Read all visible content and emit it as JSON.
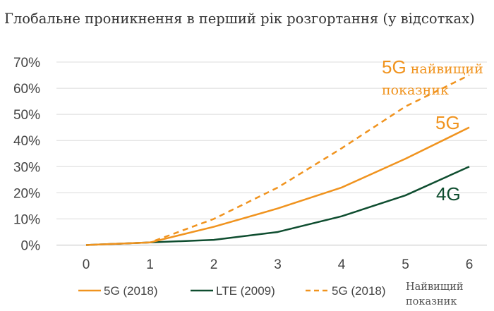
{
  "chart_data": {
    "type": "line",
    "title": "Глобальне проникнення в перший рік розгортання (у відсотках)",
    "x": [
      0,
      1,
      2,
      3,
      4,
      5,
      6
    ],
    "x_tick_labels": [
      "0",
      "1",
      "2",
      "3",
      "4",
      "5",
      "6"
    ],
    "ylim": [
      0,
      70
    ],
    "y_tick_labels": [
      "0%",
      "10%",
      "20%",
      "30%",
      "40%",
      "50%",
      "60%",
      "70%"
    ],
    "y_ticks": [
      0,
      10,
      20,
      30,
      40,
      50,
      60,
      70
    ],
    "grid": true,
    "series": [
      {
        "name": "5G (2018)",
        "color": "#F0931E",
        "style": "solid",
        "values": [
          0,
          1,
          7,
          14,
          22,
          33,
          45
        ]
      },
      {
        "name": "LTE (2009)",
        "color": "#0E4D2F",
        "style": "solid",
        "values": [
          0,
          1,
          2,
          5,
          11,
          19,
          30
        ]
      },
      {
        "name": "5G (2018)",
        "name_suffix": [
          "Найвищий",
          "показник"
        ],
        "color": "#F0931E",
        "style": "dashed",
        "values": [
          0,
          1,
          10,
          22,
          37,
          53,
          65
        ]
      }
    ],
    "annotations": [
      {
        "parts": [
          "5G",
          " найвищий"
        ],
        "line2": "показник",
        "color": "#F0931E"
      },
      {
        "text": "5G",
        "color": "#F0931E"
      },
      {
        "text": "4G",
        "color": "#0E4D2F"
      }
    ]
  }
}
